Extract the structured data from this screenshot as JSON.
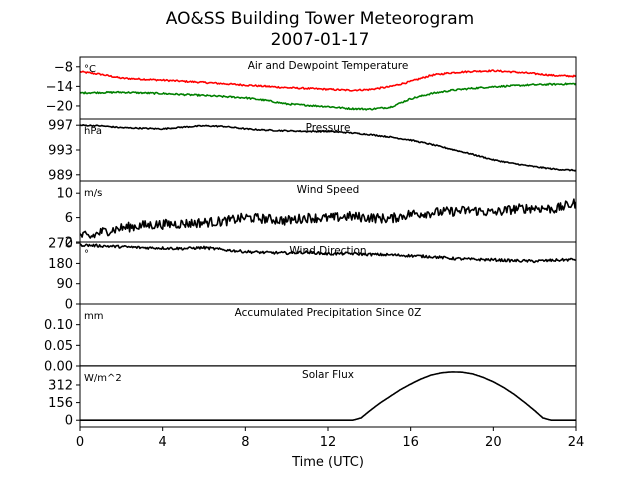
{
  "figure": {
    "title_line1": "AO&SS Building Tower Meteorogram",
    "title_line2": "2007-01-17",
    "xlabel": "Time (UTC)"
  },
  "chart_data": {
    "type": "line",
    "x_axis": {
      "label": "Time (UTC)",
      "range": [
        0,
        24
      ],
      "ticks": [
        0,
        4,
        8,
        12,
        16,
        20,
        24
      ]
    },
    "panels": [
      {
        "title": "Air and Dewpoint Temperature",
        "unit": "°C",
        "ylim": [
          -24,
          -5
        ],
        "yticks": [
          -8,
          -14,
          -20
        ],
        "ytick_labels": [
          "−8",
          "−14",
          "−20"
        ],
        "series": [
          {
            "color": "#ff0000",
            "noise": 0.25,
            "x": [
              0,
              1,
              2,
              4,
              6,
              8,
              10,
              12,
              13,
              14,
              15,
              16,
              17,
              18,
              19,
              20,
              21,
              22,
              23,
              24
            ],
            "y": [
              -9.5,
              -10.3,
              -11.5,
              -12.1,
              -12.8,
              -13.6,
              -14.4,
              -14.9,
              -15.2,
              -15.0,
              -14.1,
              -12.5,
              -10.6,
              -9.8,
              -9.4,
              -9.2,
              -9.6,
              -10.1,
              -10.7,
              -10.9
            ]
          },
          {
            "color": "#008000",
            "noise": 0.25,
            "x": [
              0,
              2,
              4,
              6,
              8,
              9,
              10,
              11,
              12,
              13,
              14,
              15,
              16,
              17,
              18,
              19,
              20,
              22,
              24
            ],
            "y": [
              -16.0,
              -15.8,
              -16.2,
              -16.8,
              -17.5,
              -18.3,
              -19.4,
              -19.8,
              -20.2,
              -20.8,
              -21.0,
              -20.4,
              -17.8,
              -16.2,
              -15.2,
              -14.6,
              -14.1,
              -13.5,
              -13.2
            ]
          }
        ]
      },
      {
        "title": "Pressure",
        "unit": "hPa",
        "ylim": [
          988,
          998
        ],
        "yticks": [
          997,
          993,
          989
        ],
        "ytick_labels": [
          "997",
          "993",
          "989"
        ],
        "series": [
          {
            "color": "#000000",
            "noise": 0.1,
            "x": [
              0,
              1,
              2,
              3,
              4,
              5,
              6,
              7,
              8,
              9,
              10,
              11,
              12,
              13,
              14,
              15,
              16,
              17,
              18,
              19,
              20,
              21,
              22,
              23,
              24
            ],
            "y": [
              997.0,
              996.9,
              996.6,
              996.5,
              996.4,
              996.7,
              996.9,
              996.8,
              996.4,
              996.2,
              996.1,
              996.0,
              996.0,
              995.8,
              995.5,
              995.1,
              994.6,
              993.9,
              993.1,
              992.3,
              991.4,
              990.8,
              990.3,
              989.9,
              989.7
            ]
          }
        ]
      },
      {
        "title": "Wind Speed",
        "unit": "m/s",
        "ylim": [
          2,
          12
        ],
        "yticks": [
          10,
          6,
          2
        ],
        "ytick_labels": [
          "10",
          "6",
          "2"
        ],
        "series": [
          {
            "color": "#000000",
            "noise": 0.8,
            "x": [
              0,
              0.5,
              1,
              2,
              3,
              4,
              5,
              6,
              7,
              8,
              9,
              10,
              11,
              12,
              13,
              14,
              15,
              16,
              17,
              18,
              19,
              20,
              21,
              22,
              23,
              24
            ],
            "y": [
              3.1,
              2.8,
              3.6,
              4.3,
              4.7,
              4.9,
              5.0,
              5.2,
              5.4,
              6.0,
              5.8,
              5.5,
              6.0,
              5.9,
              6.2,
              6.0,
              5.8,
              6.6,
              6.8,
              7.0,
              7.2,
              6.8,
              7.4,
              7.6,
              7.4,
              8.4
            ]
          }
        ]
      },
      {
        "title": "Wind Direction",
        "unit": "°",
        "ylim": [
          0,
          275
        ],
        "yticks": [
          270,
          180,
          90,
          0
        ],
        "ytick_labels": [
          "270",
          "180",
          "90",
          "0"
        ],
        "series": [
          {
            "color": "#000000",
            "noise": 6,
            "x": [
              0,
              1,
              2,
              3,
              4,
              5,
              6,
              7,
              8,
              9,
              10,
              11,
              12,
              13,
              14,
              15,
              16,
              17,
              18,
              19,
              20,
              21,
              22,
              23,
              24
            ],
            "y": [
              262,
              258,
              254,
              250,
              248,
              246,
              250,
              240,
              232,
              228,
              226,
              230,
              222,
              224,
              220,
              218,
              214,
              210,
              202,
              198,
              196,
              192,
              190,
              194,
              198
            ]
          }
        ]
      },
      {
        "title": "Accumulated Precipitation Since 0Z",
        "unit": "mm",
        "ylim": [
          0,
          0.15
        ],
        "yticks": [
          0.1,
          0.05,
          0.0
        ],
        "ytick_labels": [
          "0.10",
          "0.05",
          "0.00"
        ],
        "series": [
          {
            "color": "#000000",
            "noise": 0,
            "x": [
              0,
              24
            ],
            "y": [
              0,
              0
            ]
          }
        ]
      },
      {
        "title": "Solar Flux",
        "unit": "W/m^2",
        "ylim": [
          -60,
          480
        ],
        "yticks": [
          312,
          156,
          0
        ],
        "ytick_labels": [
          "312",
          "156",
          "0"
        ],
        "series": [
          {
            "color": "#000000",
            "noise": 0,
            "x": [
              0,
              13.2,
              13.6,
              14.0,
              14.5,
              15.0,
              15.5,
              16.0,
              16.5,
              17.0,
              17.5,
              18.0,
              18.5,
              19.0,
              19.5,
              20.0,
              20.5,
              21.0,
              21.5,
              22.0,
              22.4,
              22.8,
              23.2,
              24
            ],
            "y": [
              0,
              0,
              20,
              80,
              150,
              210,
              270,
              320,
              365,
              400,
              420,
              428,
              425,
              410,
              380,
              340,
              290,
              230,
              160,
              85,
              20,
              0,
              0,
              0
            ]
          }
        ]
      }
    ]
  }
}
